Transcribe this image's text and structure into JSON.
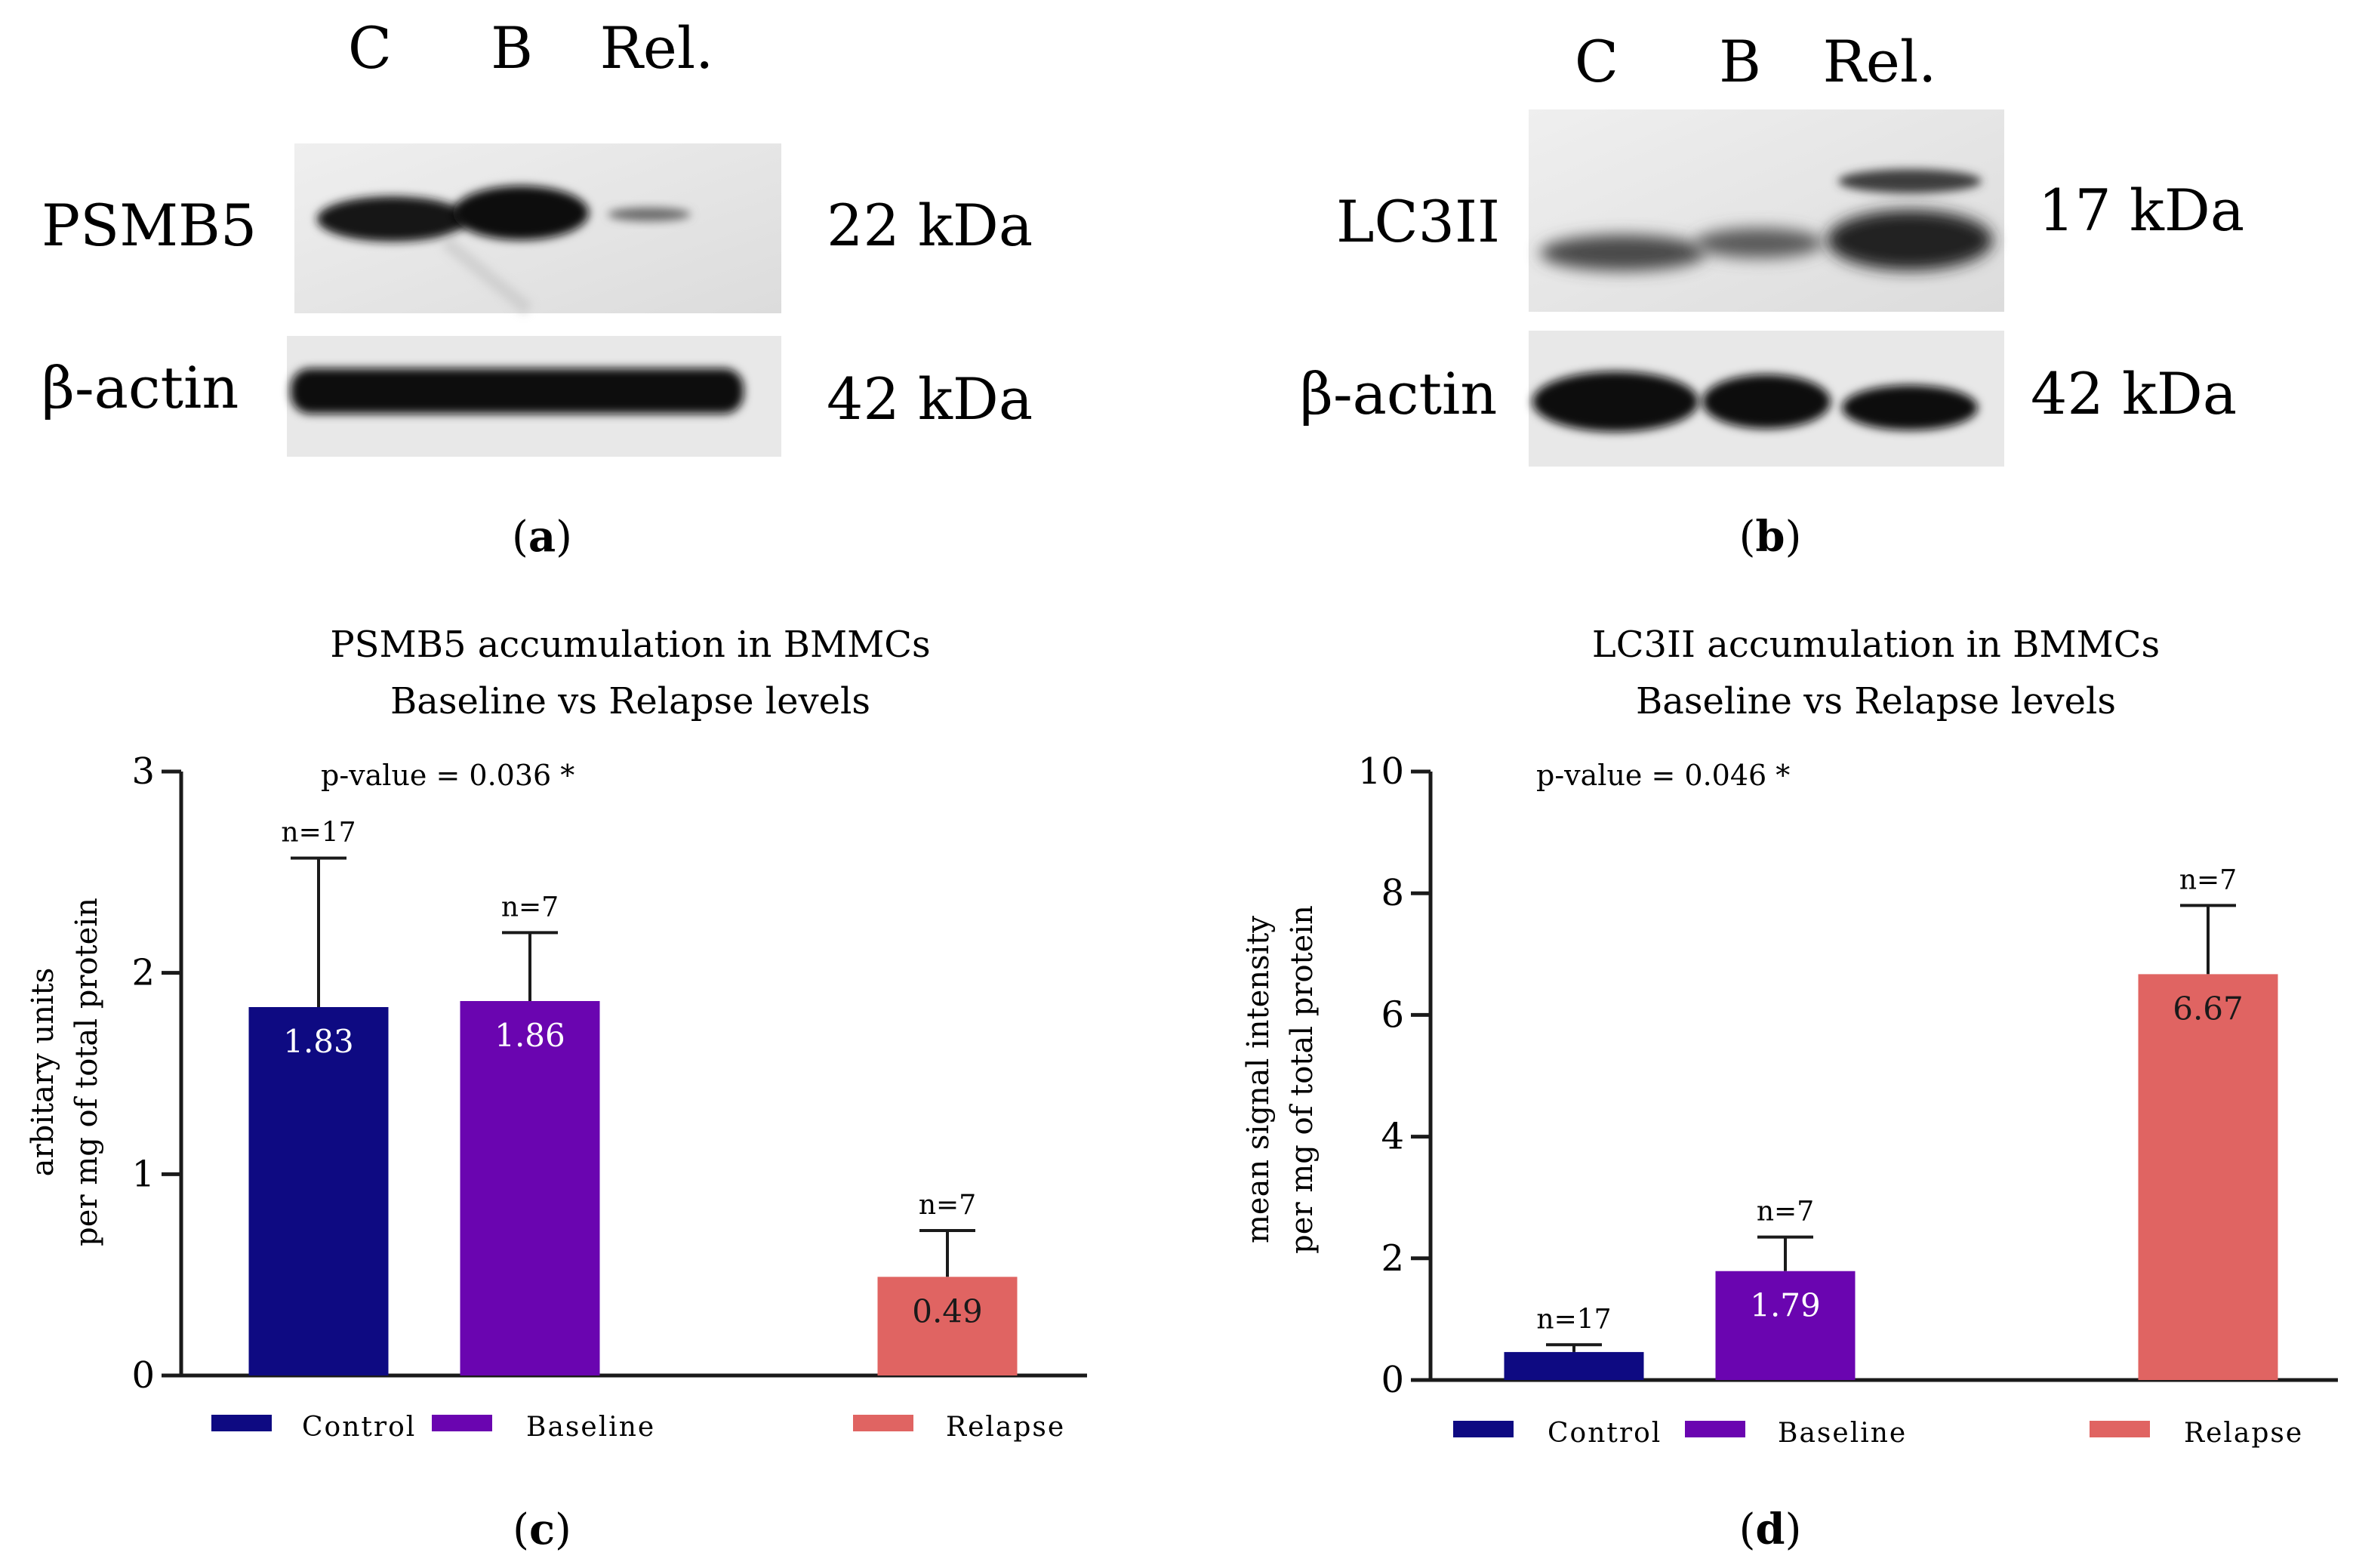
{
  "blot_a": {
    "lanes": [
      "C",
      "B",
      "Rel."
    ],
    "rows": [
      {
        "protein": "PSMB5",
        "mw": "22 kDa"
      },
      {
        "protein": "β-actin",
        "mw": "42 kDa"
      }
    ],
    "caption": {
      "open": "(",
      "letter": "a",
      "close": ")"
    }
  },
  "blot_b": {
    "lanes": [
      "C",
      "B",
      "Rel."
    ],
    "rows": [
      {
        "protein": "LC3II",
        "mw": "17 kDa"
      },
      {
        "protein": "β-actin",
        "mw": "42 kDa"
      }
    ],
    "caption": {
      "open": "(",
      "letter": "b",
      "close": ")"
    }
  },
  "chart_data": [
    {
      "type": "bar",
      "title": [
        "PSMB5 accumulation in BMMCs",
        "Baseline vs Relapse levels"
      ],
      "ylabel": [
        "arbitary units",
        "per mg of total protein"
      ],
      "xlabel": "",
      "ylim": [
        0,
        3
      ],
      "yticks": [
        0,
        1,
        2,
        3
      ],
      "annotation": "p-value = 0.036 *",
      "categories": [
        "Control",
        "Baseline",
        "Relapse"
      ],
      "values": [
        1.83,
        1.86,
        0.49
      ],
      "value_labels": [
        "1.83",
        "1.86",
        "0.49"
      ],
      "error_upper": [
        2.57,
        2.2,
        0.72
      ],
      "n_labels": [
        "n=17",
        "n=7",
        "n=7"
      ],
      "colors": [
        "#0e0a82",
        "#6a05b0",
        "#e06462"
      ],
      "caption": {
        "open": "(",
        "letter": "c",
        "close": ")"
      }
    },
    {
      "type": "bar",
      "title": [
        "LC3II accumulation in BMMCs",
        "Baseline vs Relapse levels"
      ],
      "ylabel": [
        "mean signal intensity",
        "per mg of total protein"
      ],
      "xlabel": "",
      "ylim": [
        0,
        10
      ],
      "yticks": [
        0,
        2,
        4,
        6,
        8,
        10
      ],
      "annotation": "p-value = 0.046 *",
      "categories": [
        "Control",
        "Baseline",
        "Relapse"
      ],
      "values": [
        0.46,
        1.79,
        6.67
      ],
      "value_labels": [
        "",
        "1.79",
        "6.67"
      ],
      "error_upper": [
        0.58,
        2.35,
        7.8
      ],
      "n_labels": [
        "n=17",
        "n=7",
        "n=7"
      ],
      "colors": [
        "#0e0a82",
        "#6a05b0",
        "#e06462"
      ],
      "caption": {
        "open": "(",
        "letter": "d",
        "close": ")"
      }
    }
  ]
}
